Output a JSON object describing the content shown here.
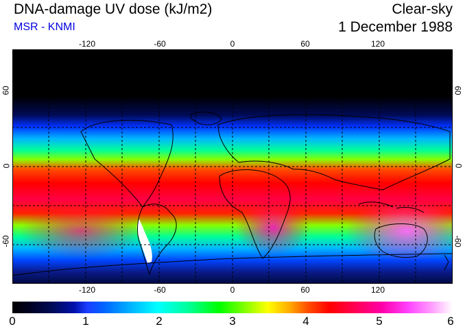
{
  "header": {
    "title": "DNA-damage UV dose (kJ/m2)",
    "subtitle": "MSR - KNMI",
    "condition": "Clear-sky",
    "date": "1 December 1988"
  },
  "map": {
    "lon_ticks": [
      "-120",
      "-60",
      "0",
      "60",
      "120"
    ],
    "lat_ticks": [
      "60",
      "0",
      "-60"
    ]
  },
  "colorbar": {
    "labels": [
      "0",
      "1",
      "2",
      "3",
      "4",
      "5",
      "6"
    ],
    "colors": [
      "#000000",
      "#0011aa",
      "#00ffff",
      "#00ff00",
      "#ffff00",
      "#ff0000",
      "#ff00aa",
      "#ffffff"
    ]
  },
  "colors": {
    "subtitle": "#0000dd"
  }
}
